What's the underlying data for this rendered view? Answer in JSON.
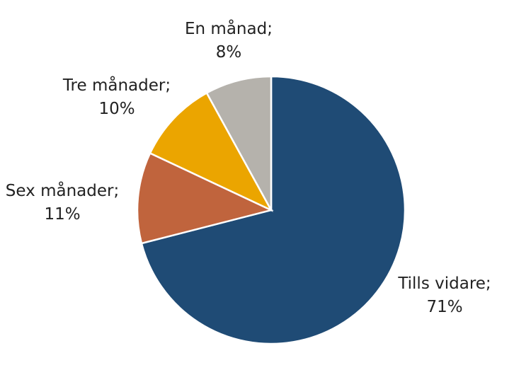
{
  "chart_data": {
    "type": "pie",
    "title": "",
    "start_angle": "top",
    "direction": "clockwise",
    "slices": [
      {
        "label": "Tills vidare;",
        "value": 71,
        "value_label": "71%",
        "color": "#1F4B75"
      },
      {
        "label": "Sex månader;",
        "value": 11,
        "value_label": "11%",
        "color": "#C0643D"
      },
      {
        "label": "Tre månader;",
        "value": 10,
        "value_label": "10%",
        "color": "#EBA500"
      },
      {
        "label": "En månad;",
        "value": 8,
        "value_label": "8%",
        "color": "#B5B2AC"
      }
    ]
  }
}
